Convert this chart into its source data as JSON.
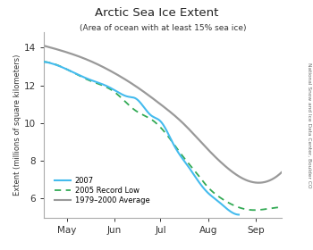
{
  "title": "Arctic Sea Ice Extent",
  "subtitle": "(Area of ocean with at least 15% sea ice)",
  "ylabel": "Extent (millions of square kilometers)",
  "side_label": "National Snow and Ice Data Center, Boulder CO",
  "xlim": [
    0,
    155
  ],
  "ylim": [
    5.0,
    14.8
  ],
  "yticks": [
    6,
    8,
    10,
    12,
    14
  ],
  "xtick_positions": [
    15,
    46,
    76,
    107,
    138
  ],
  "xtick_labels": [
    "May",
    "Jun",
    "Jul",
    "Aug",
    "Sep"
  ],
  "line_2007_color": "#44bbee",
  "line_2005_color": "#33aa55",
  "line_avg_color": "#999999",
  "legend_entries": [
    "2007",
    "2005 Record Low",
    "1979–2000 Average"
  ],
  "background_color": "#ffffff",
  "avg_points": [
    [
      0,
      14.1
    ],
    [
      15,
      13.75
    ],
    [
      30,
      13.3
    ],
    [
      46,
      12.65
    ],
    [
      60,
      11.95
    ],
    [
      76,
      11.0
    ],
    [
      90,
      10.05
    ],
    [
      107,
      8.6
    ],
    [
      120,
      7.6
    ],
    [
      130,
      7.05
    ],
    [
      138,
      6.85
    ],
    [
      145,
      6.9
    ],
    [
      155,
      7.4
    ]
  ],
  "r2005_points": [
    [
      0,
      13.25
    ],
    [
      15,
      12.85
    ],
    [
      30,
      12.25
    ],
    [
      46,
      11.65
    ],
    [
      60,
      10.65
    ],
    [
      70,
      10.2
    ],
    [
      80,
      9.4
    ],
    [
      90,
      8.3
    ],
    [
      100,
      7.3
    ],
    [
      107,
      6.6
    ],
    [
      115,
      6.05
    ],
    [
      125,
      5.6
    ],
    [
      135,
      5.4
    ],
    [
      145,
      5.45
    ],
    [
      155,
      5.55
    ]
  ],
  "r2007_points": [
    [
      0,
      13.25
    ],
    [
      15,
      12.85
    ],
    [
      30,
      12.3
    ],
    [
      40,
      12.0
    ],
    [
      46,
      11.75
    ],
    [
      55,
      11.4
    ],
    [
      60,
      11.3
    ],
    [
      70,
      10.4
    ],
    [
      76,
      10.1
    ],
    [
      85,
      8.8
    ],
    [
      95,
      7.6
    ],
    [
      100,
      7.0
    ],
    [
      107,
      6.3
    ],
    [
      113,
      5.9
    ],
    [
      118,
      5.55
    ],
    [
      123,
      5.25
    ],
    [
      127,
      5.15
    ]
  ]
}
